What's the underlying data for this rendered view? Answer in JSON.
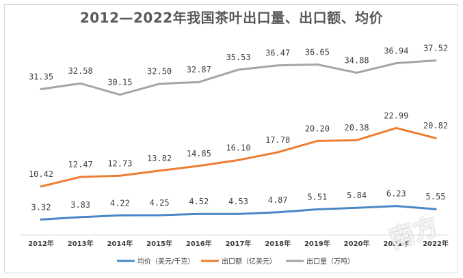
{
  "chart_data": {
    "type": "line",
    "title": "2012—2022年我国茶叶出口量、出口额、均价",
    "categories": [
      "2012年",
      "2013年",
      "2014年",
      "2015年",
      "2016年",
      "2017年",
      "2018年",
      "2019年",
      "2020年",
      "2021年",
      "2022年"
    ],
    "series": [
      {
        "name": "均价（美元/千克）",
        "color": "#4a86c5",
        "values": [
          3.32,
          3.83,
          4.22,
          4.25,
          4.52,
          4.53,
          4.87,
          5.51,
          5.84,
          6.23,
          5.55
        ]
      },
      {
        "name": "出口额（亿美元）",
        "color": "#ed7d31",
        "values": [
          10.42,
          12.47,
          12.73,
          13.82,
          14.85,
          16.1,
          17.78,
          20.2,
          20.38,
          22.99,
          20.82
        ]
      },
      {
        "name": "出口量（万吨）",
        "color": "#a5a5a5",
        "values": [
          31.35,
          32.58,
          30.15,
          32.5,
          32.87,
          35.53,
          36.47,
          36.65,
          34.88,
          36.94,
          37.52
        ]
      }
    ],
    "value_labels": {
      "均价（美元/千克）": [
        "3.32",
        "3.83",
        "4.22",
        "4.25",
        "4.52",
        "4.53",
        "4.87",
        "5.51",
        "5.84",
        "6.23",
        "5.55"
      ],
      "出口额（亿美元）": [
        "10.42",
        "12.47",
        "12.73",
        "13.82",
        "14.85",
        "16.10",
        "17.78",
        "20.20",
        "20.38",
        "22.99",
        "20.82"
      ],
      "出口量（万吨）": [
        "31.35",
        "32.58",
        "30.15",
        "32.50",
        "32.87",
        "35.53",
        "36.47",
        "36.65",
        "34.88",
        "36.94",
        "37.52"
      ]
    },
    "ylim": [
      0,
      42
    ],
    "grid": false,
    "legend_position": "bottom",
    "watermark": "南方"
  }
}
